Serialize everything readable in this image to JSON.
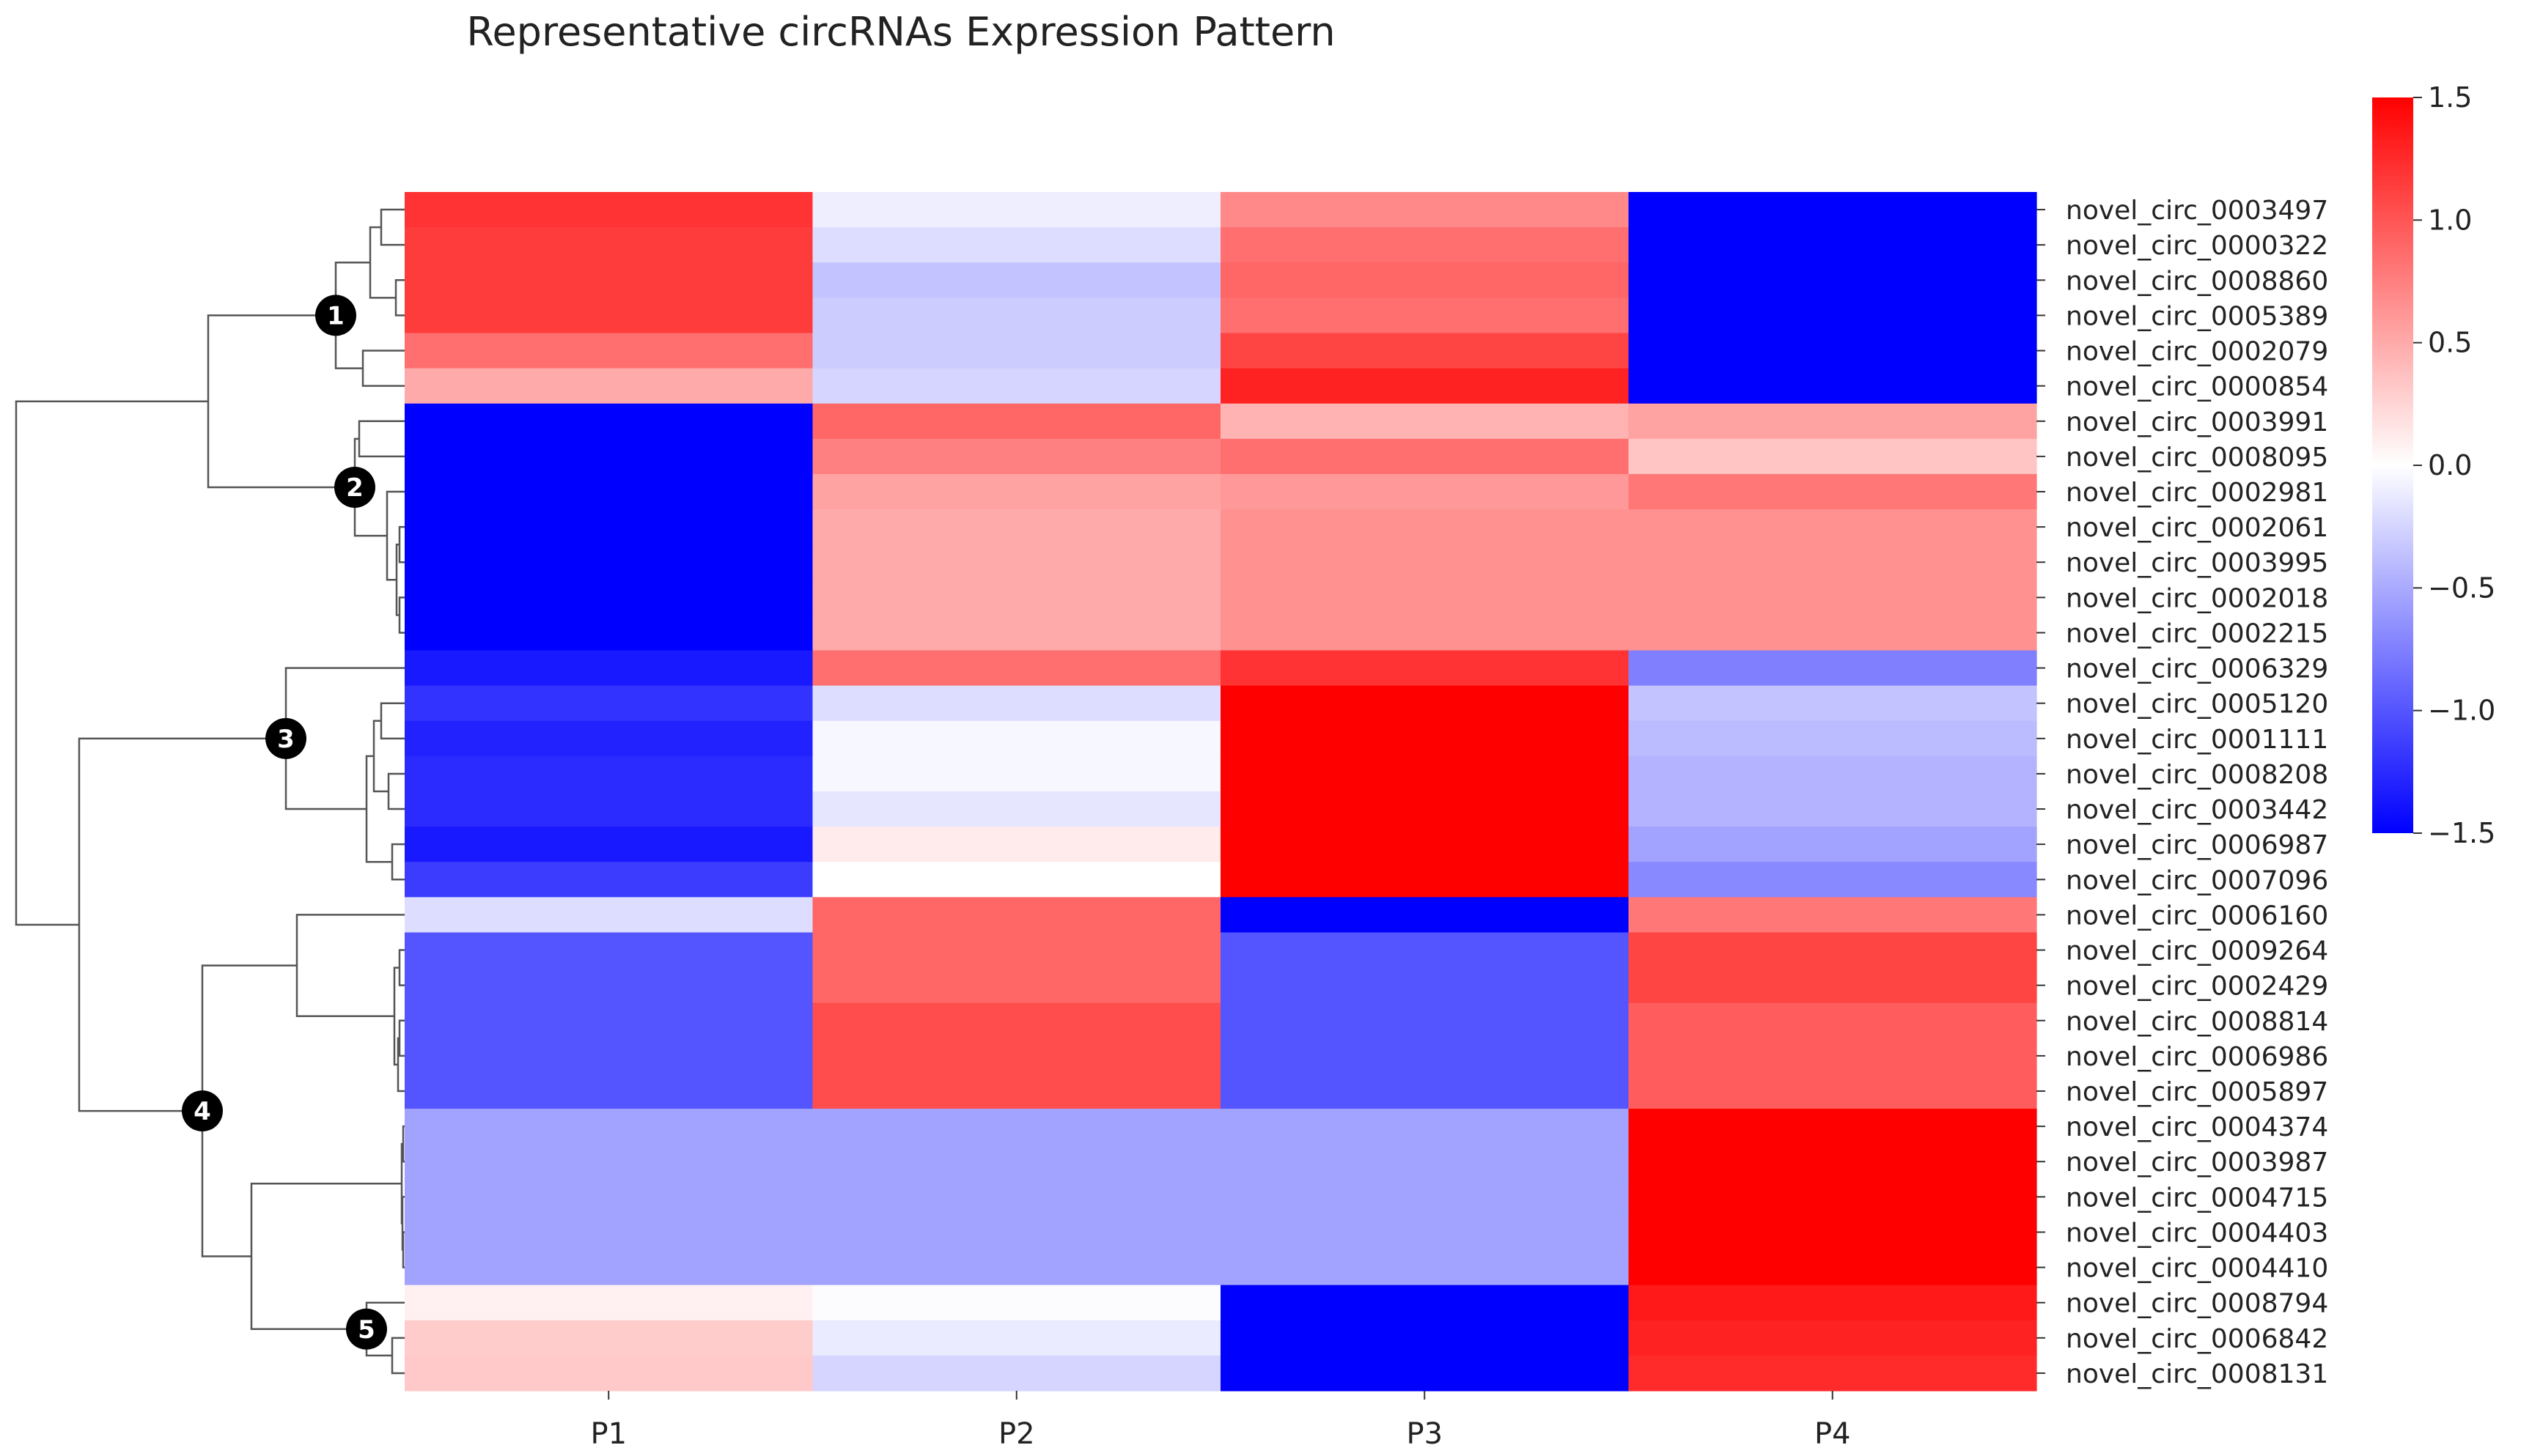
{
  "chart_data": {
    "type": "heatmap",
    "title": "Representative circRNAs Expression Pattern",
    "columns": [
      "P1",
      "P2",
      "P3",
      "P4"
    ],
    "rows": [
      {
        "label": "novel_circ_0003497",
        "values": [
          1.2,
          -0.1,
          0.7,
          -1.5
        ]
      },
      {
        "label": "novel_circ_0000322",
        "values": [
          1.15,
          -0.2,
          0.85,
          -1.5
        ]
      },
      {
        "label": "novel_circ_0008860",
        "values": [
          1.15,
          -0.35,
          0.9,
          -1.5
        ]
      },
      {
        "label": "novel_circ_0005389",
        "values": [
          1.15,
          -0.3,
          0.85,
          -1.5
        ]
      },
      {
        "label": "novel_circ_0002079",
        "values": [
          0.85,
          -0.3,
          1.1,
          -1.5
        ]
      },
      {
        "label": "novel_circ_0000854",
        "values": [
          0.5,
          -0.25,
          1.3,
          -1.5
        ]
      },
      {
        "label": "novel_circ_0003991",
        "values": [
          -1.5,
          0.9,
          0.45,
          0.55
        ]
      },
      {
        "label": "novel_circ_0008095",
        "values": [
          -1.5,
          0.75,
          0.85,
          0.35
        ]
      },
      {
        "label": "novel_circ_0002981",
        "values": [
          -1.5,
          0.55,
          0.6,
          0.8
        ]
      },
      {
        "label": "novel_circ_0002061",
        "values": [
          -1.5,
          0.5,
          0.65,
          0.65
        ]
      },
      {
        "label": "novel_circ_0003995",
        "values": [
          -1.5,
          0.5,
          0.65,
          0.65
        ]
      },
      {
        "label": "novel_circ_0002018",
        "values": [
          -1.5,
          0.5,
          0.65,
          0.65
        ]
      },
      {
        "label": "novel_circ_0002215",
        "values": [
          -1.5,
          0.5,
          0.65,
          0.65
        ]
      },
      {
        "label": "novel_circ_0006329",
        "values": [
          -1.35,
          0.85,
          1.2,
          -0.75
        ]
      },
      {
        "label": "novel_circ_0005120",
        "values": [
          -1.2,
          -0.2,
          1.5,
          -0.35
        ]
      },
      {
        "label": "novel_circ_0001111",
        "values": [
          -1.3,
          -0.05,
          1.5,
          -0.4
        ]
      },
      {
        "label": "novel_circ_0008208",
        "values": [
          -1.25,
          -0.05,
          1.5,
          -0.45
        ]
      },
      {
        "label": "novel_circ_0003442",
        "values": [
          -1.25,
          -0.15,
          1.5,
          -0.45
        ]
      },
      {
        "label": "novel_circ_0006987",
        "values": [
          -1.35,
          0.12,
          1.5,
          -0.55
        ]
      },
      {
        "label": "novel_circ_0007096",
        "values": [
          -1.15,
          0.0,
          1.5,
          -0.7
        ]
      },
      {
        "label": "novel_circ_0006160",
        "values": [
          -0.2,
          0.9,
          -1.5,
          0.8
        ]
      },
      {
        "label": "novel_circ_0009264",
        "values": [
          -1.0,
          0.9,
          -1.0,
          1.1
        ]
      },
      {
        "label": "novel_circ_0002429",
        "values": [
          -1.0,
          0.9,
          -1.0,
          1.1
        ]
      },
      {
        "label": "novel_circ_0008814",
        "values": [
          -1.0,
          1.05,
          -1.0,
          0.95
        ]
      },
      {
        "label": "novel_circ_0006986",
        "values": [
          -1.0,
          1.05,
          -1.0,
          0.95
        ]
      },
      {
        "label": "novel_circ_0005897",
        "values": [
          -1.0,
          1.05,
          -1.0,
          0.95
        ]
      },
      {
        "label": "novel_circ_0004374",
        "values": [
          -0.55,
          -0.55,
          -0.55,
          1.5
        ]
      },
      {
        "label": "novel_circ_0003987",
        "values": [
          -0.55,
          -0.55,
          -0.55,
          1.5
        ]
      },
      {
        "label": "novel_circ_0004715",
        "values": [
          -0.55,
          -0.55,
          -0.55,
          1.5
        ]
      },
      {
        "label": "novel_circ_0004403",
        "values": [
          -0.55,
          -0.55,
          -0.55,
          1.5
        ]
      },
      {
        "label": "novel_circ_0004410",
        "values": [
          -0.55,
          -0.55,
          -0.55,
          1.5
        ]
      },
      {
        "label": "novel_circ_0008794",
        "values": [
          0.08,
          -0.02,
          -1.5,
          1.35
        ]
      },
      {
        "label": "novel_circ_0006842",
        "values": [
          0.3,
          -0.12,
          -1.5,
          1.3
        ]
      },
      {
        "label": "novel_circ_0008131",
        "values": [
          0.32,
          -0.25,
          -1.5,
          1.25
        ]
      }
    ],
    "colorbar": {
      "min": -1.5,
      "max": 1.5,
      "low_color": "#0000ff",
      "mid_color": "#ffffff",
      "high_color": "#ff0000",
      "ticks": [
        "1.5",
        "1.0",
        "0.5",
        "0.0",
        "−0.5",
        "−1.0",
        "−1.5"
      ]
    },
    "clusters": [
      {
        "label": "1",
        "rows": [
          0,
          5
        ]
      },
      {
        "label": "2",
        "rows": [
          6,
          12
        ]
      },
      {
        "label": "3",
        "rows": [
          13,
          19
        ]
      },
      {
        "label": "4",
        "rows": [
          20,
          33
        ]
      },
      {
        "label": "5",
        "rows": [
          31,
          33
        ]
      }
    ]
  },
  "colors": {
    "line": "#555555",
    "node": "#000000",
    "text": "#222222"
  }
}
